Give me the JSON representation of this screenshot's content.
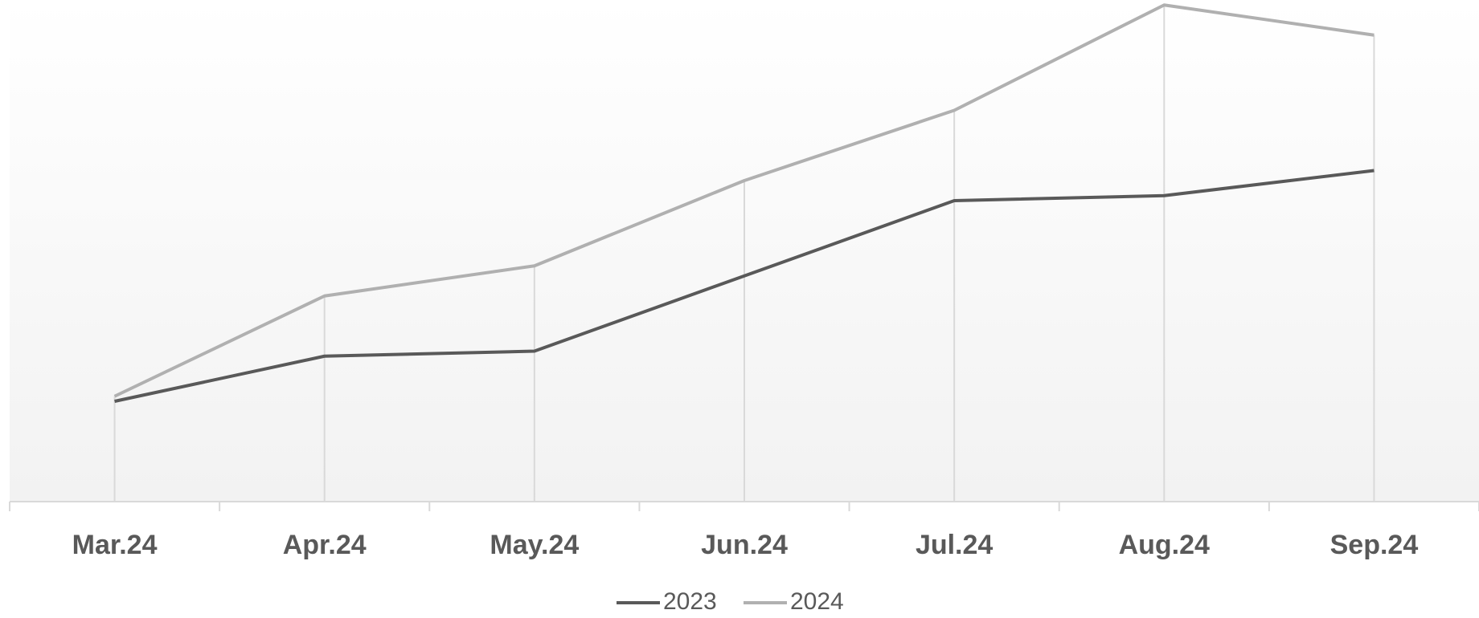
{
  "chart_data": {
    "type": "line",
    "categories": [
      "Mar.24",
      "Apr.24",
      "May.24",
      "Jun.24",
      "Jul.24",
      "Aug.24",
      "Sep.24"
    ],
    "series": [
      {
        "name": "2023",
        "color": "#595959",
        "values": [
          20,
          29,
          30,
          45,
          60,
          61,
          66
        ]
      },
      {
        "name": "2024",
        "color": "#b0b0b0",
        "values": [
          21,
          41,
          47,
          64,
          78,
          99,
          93
        ]
      }
    ],
    "ylim": [
      0,
      100
    ],
    "drop_lines": true,
    "legend": "bottom"
  }
}
